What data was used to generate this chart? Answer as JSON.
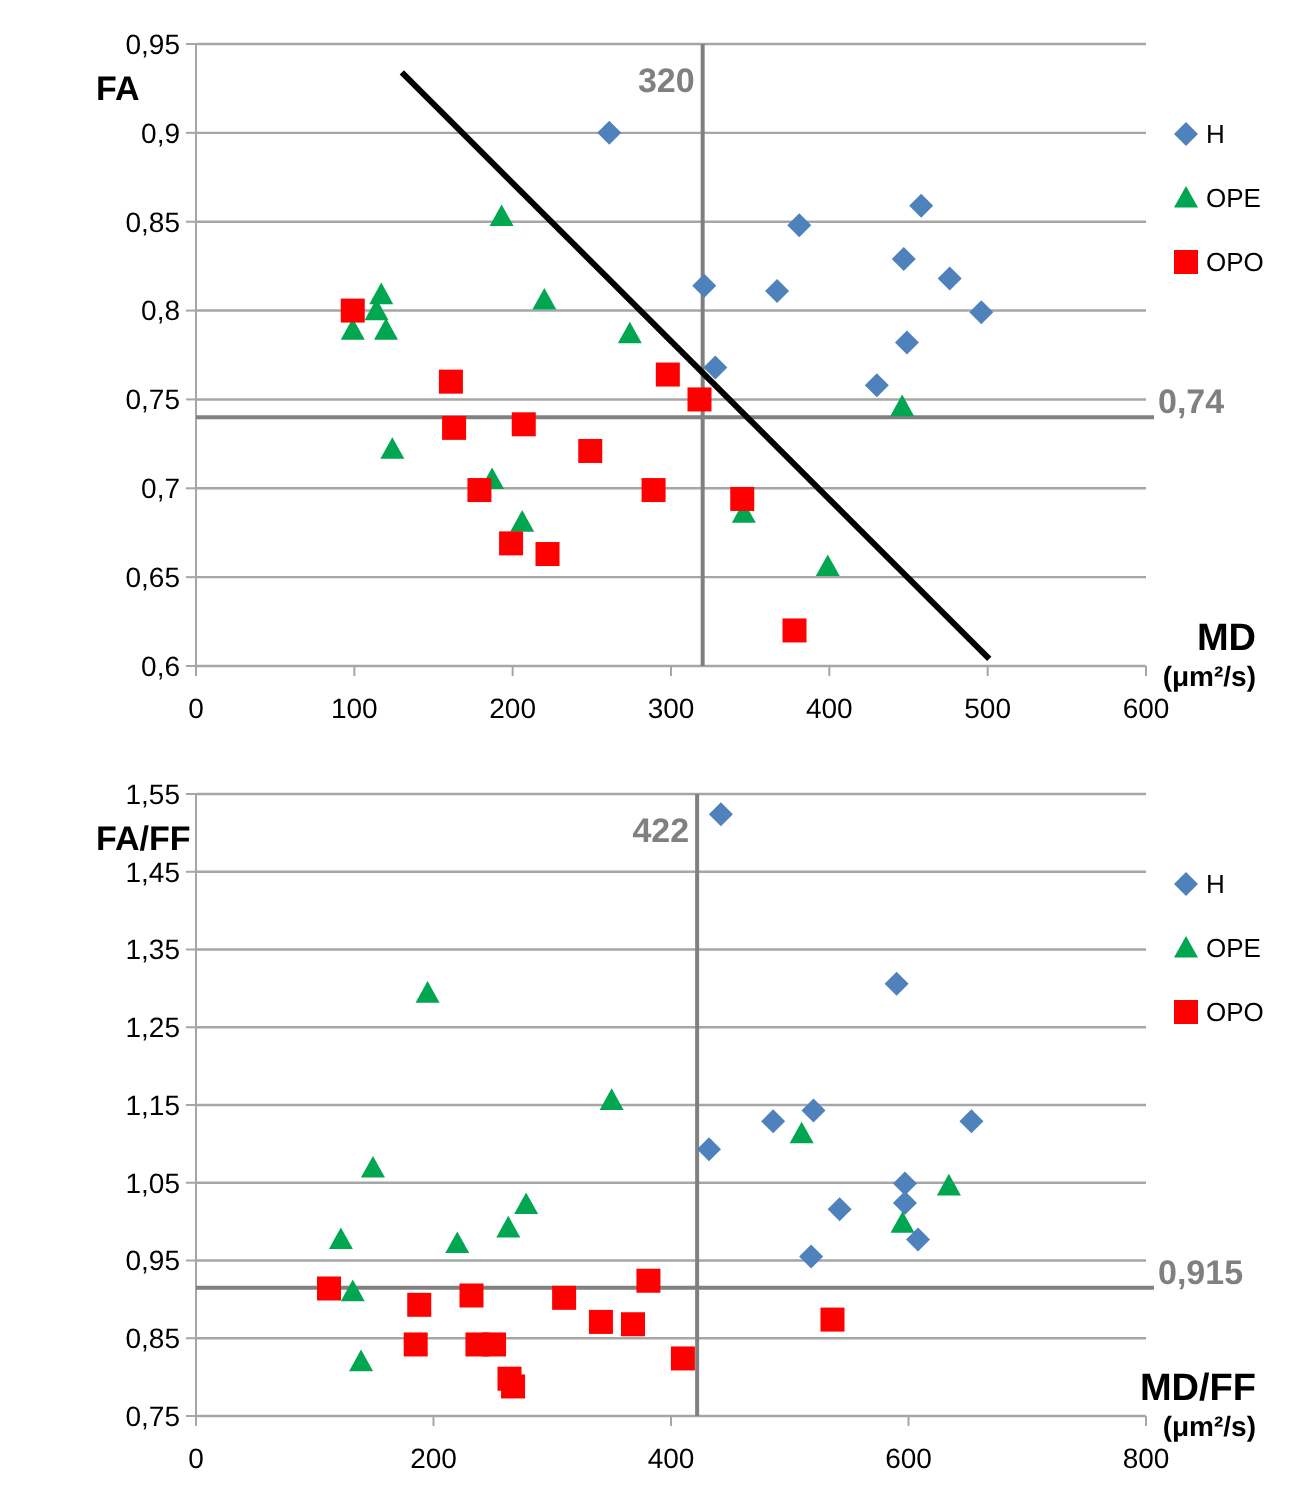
{
  "chart_data": [
    {
      "type": "scatter",
      "ylabel": "FA",
      "xlabel": "MD (μm²/s)",
      "xlim": [
        0,
        600
      ],
      "ylim": [
        0.6,
        0.95
      ],
      "xticks": [
        0,
        100,
        200,
        300,
        400,
        500,
        600
      ],
      "yticks": [
        {
          "value": 0.6,
          "label": "0,6"
        },
        {
          "value": 0.65,
          "label": "0,65"
        },
        {
          "value": 0.7,
          "label": "0,7"
        },
        {
          "value": 0.75,
          "label": "0,75"
        },
        {
          "value": 0.8,
          "label": "0,8"
        },
        {
          "value": 0.85,
          "label": "0,85"
        },
        {
          "value": 0.9,
          "label": "0,9"
        },
        {
          "value": 0.95,
          "label": "0,95"
        }
      ],
      "grid": "y",
      "legend": "right",
      "ref_lines": [
        {
          "axis": "x",
          "value": 320,
          "label": "320",
          "color": "#808080"
        },
        {
          "axis": "y",
          "value": 0.74,
          "label": "0,74",
          "color": "#808080"
        }
      ],
      "series": [
        {
          "name": "H",
          "color": "#4f81bd",
          "marker": "diamond",
          "x": [
            261,
            321,
            381,
            367,
            328,
            430,
            447,
            458,
            476,
            496,
            449
          ],
          "values": [
            0.9,
            0.814,
            0.848,
            0.811,
            0.768,
            0.758,
            0.829,
            0.859,
            0.818,
            0.799,
            0.782
          ]
        },
        {
          "name": "OPE",
          "color": "#00a650",
          "marker": "triangle",
          "x": [
            99,
            117,
            114,
            120,
            193,
            124,
            220,
            187,
            206,
            274,
            446,
            346,
            399
          ],
          "values": [
            0.789,
            0.809,
            0.8,
            0.789,
            0.853,
            0.722,
            0.806,
            0.705,
            0.681,
            0.787,
            0.746,
            0.686,
            0.656
          ]
        },
        {
          "name": "OPO",
          "color": "#ff0000",
          "marker": "square",
          "x": [
            99,
            161,
            163,
            207,
            179,
            199,
            222,
            249,
            289,
            298,
            318,
            345,
            378
          ],
          "values": [
            0.8,
            0.76,
            0.734,
            0.736,
            0.699,
            0.669,
            0.663,
            0.721,
            0.699,
            0.764,
            0.75,
            0.694,
            0.62
          ]
        },
        {
          "type": "line",
          "color": "#000000",
          "marker": "none",
          "x": [
            130,
            501
          ],
          "values": [
            0.934,
            0.604
          ]
        }
      ]
    },
    {
      "type": "scatter",
      "ylabel": "FA/FF",
      "xlabel": "MD/FF (μm²/s)",
      "xlim": [
        0,
        800
      ],
      "ylim": [
        0.75,
        1.55
      ],
      "xticks": [
        0,
        200,
        400,
        600,
        800
      ],
      "yticks": [
        {
          "value": 0.75,
          "label": "0,75"
        },
        {
          "value": 0.85,
          "label": "0,85"
        },
        {
          "value": 0.95,
          "label": "0,95"
        },
        {
          "value": 1.05,
          "label": "1,05"
        },
        {
          "value": 1.15,
          "label": "1,15"
        },
        {
          "value": 1.25,
          "label": "1,25"
        },
        {
          "value": 1.35,
          "label": "1,35"
        },
        {
          "value": 1.45,
          "label": "1,45"
        },
        {
          "value": 1.55,
          "label": "1,55"
        }
      ],
      "grid": "y",
      "legend": "right",
      "ref_lines": [
        {
          "axis": "x",
          "value": 422,
          "label": "422",
          "color": "#808080"
        },
        {
          "axis": "y",
          "value": 0.915,
          "label": "0,915",
          "color": "#808080"
        }
      ],
      "series": [
        {
          "name": "H",
          "color": "#4f81bd",
          "marker": "diamond",
          "x": [
            442,
            590,
            486,
            520,
            653,
            432,
            597,
            597,
            542,
            608,
            518
          ],
          "values": [
            1.524,
            1.306,
            1.129,
            1.143,
            1.129,
            1.093,
            1.049,
            1.024,
            1.016,
            0.977,
            0.955
          ]
        },
        {
          "name": "OPE",
          "color": "#00a650",
          "marker": "triangle",
          "x": [
            195,
            350,
            149,
            122,
            132,
            139,
            220,
            263,
            278,
            510,
            634,
            595
          ],
          "values": [
            1.294,
            1.156,
            1.069,
            0.977,
            0.91,
            0.82,
            0.972,
            0.992,
            1.022,
            1.113,
            1.046,
            0.998
          ]
        },
        {
          "name": "OPO",
          "color": "#ff0000",
          "marker": "square",
          "x": [
            112,
            188,
            185,
            232,
            237,
            251,
            264,
            267,
            310,
            341,
            368,
            381,
            410,
            536
          ],
          "values": [
            0.914,
            0.893,
            0.842,
            0.905,
            0.842,
            0.842,
            0.798,
            0.788,
            0.902,
            0.871,
            0.868,
            0.924,
            0.824,
            0.874
          ]
        }
      ]
    }
  ]
}
